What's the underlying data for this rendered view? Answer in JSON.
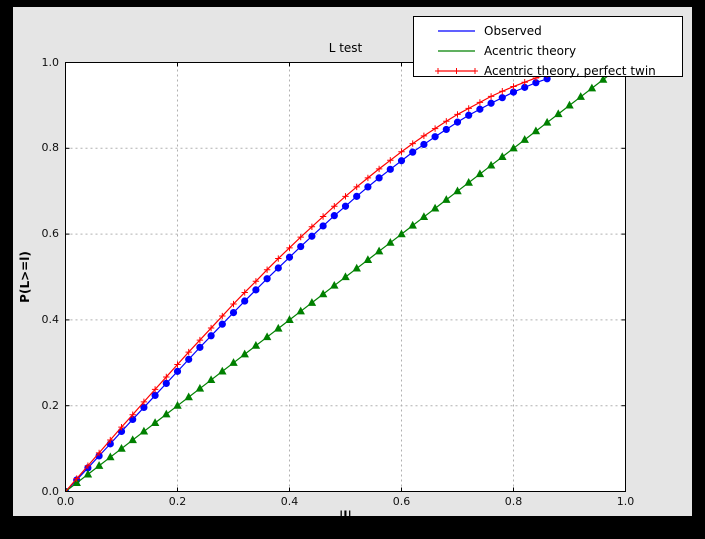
{
  "window": {
    "background": "#000000",
    "figure_background": "#e5e5e5",
    "plot_background": "#ffffff",
    "grid_color": "#b0b0b0",
    "spine_color": "#000000"
  },
  "chart_data": {
    "type": "line",
    "title": "L test",
    "xlabel": "|l|",
    "ylabel": "P(L>=l)",
    "xlim": [
      0.0,
      1.0
    ],
    "ylim": [
      0.0,
      1.0
    ],
    "xticks": [
      "0.0",
      "0.2",
      "0.4",
      "0.6",
      "0.8",
      "1.0"
    ],
    "yticks": [
      "0.0",
      "0.2",
      "0.4",
      "0.6",
      "0.8",
      "1.0"
    ],
    "grid": true,
    "legend": {
      "position": "upper right"
    },
    "series": [
      {
        "name": "Observed",
        "color": "#0000ff",
        "marker": "circle",
        "x": [
          0.0,
          0.02,
          0.04,
          0.06,
          0.08,
          0.1,
          0.12,
          0.14,
          0.16,
          0.18,
          0.2,
          0.22,
          0.24,
          0.26,
          0.28,
          0.3,
          0.32,
          0.34,
          0.36,
          0.38,
          0.4,
          0.42,
          0.44,
          0.46,
          0.48,
          0.5,
          0.52,
          0.54,
          0.56,
          0.58,
          0.6,
          0.62,
          0.64,
          0.66,
          0.68,
          0.7,
          0.72,
          0.74,
          0.76,
          0.78,
          0.8,
          0.82,
          0.84,
          0.86
        ],
        "y": [
          0.0,
          0.027,
          0.055,
          0.083,
          0.111,
          0.14,
          0.168,
          0.196,
          0.224,
          0.252,
          0.28,
          0.308,
          0.336,
          0.363,
          0.39,
          0.417,
          0.444,
          0.47,
          0.496,
          0.521,
          0.546,
          0.571,
          0.595,
          0.619,
          0.643,
          0.665,
          0.688,
          0.71,
          0.731,
          0.751,
          0.771,
          0.791,
          0.809,
          0.827,
          0.844,
          0.861,
          0.877,
          0.891,
          0.905,
          0.918,
          0.931,
          0.942,
          0.953,
          0.962
        ]
      },
      {
        "name": "Acentric theory",
        "color": "#008000",
        "marker": "triangle",
        "x": [
          0.0,
          0.02,
          0.04,
          0.06,
          0.08,
          0.1,
          0.12,
          0.14,
          0.16,
          0.18,
          0.2,
          0.22,
          0.24,
          0.26,
          0.28,
          0.3,
          0.32,
          0.34,
          0.36,
          0.38,
          0.4,
          0.42,
          0.44,
          0.46,
          0.48,
          0.5,
          0.52,
          0.54,
          0.56,
          0.58,
          0.6,
          0.62,
          0.64,
          0.66,
          0.68,
          0.7,
          0.72,
          0.74,
          0.76,
          0.78,
          0.8,
          0.82,
          0.84,
          0.86,
          0.88,
          0.9,
          0.92,
          0.94,
          0.96,
          0.98,
          1.0
        ],
        "y": [
          0.0,
          0.02,
          0.04,
          0.06,
          0.08,
          0.1,
          0.12,
          0.14,
          0.16,
          0.18,
          0.2,
          0.22,
          0.24,
          0.26,
          0.28,
          0.3,
          0.32,
          0.34,
          0.36,
          0.38,
          0.4,
          0.42,
          0.44,
          0.46,
          0.48,
          0.5,
          0.52,
          0.54,
          0.56,
          0.58,
          0.6,
          0.62,
          0.64,
          0.66,
          0.68,
          0.7,
          0.72,
          0.74,
          0.76,
          0.78,
          0.8,
          0.82,
          0.84,
          0.86,
          0.88,
          0.9,
          0.92,
          0.94,
          0.96,
          0.98,
          1.0
        ]
      },
      {
        "name": "Acentric theory, perfect twin",
        "color": "#ff0000",
        "marker": "plus",
        "x": [
          0.0,
          0.02,
          0.04,
          0.06,
          0.08,
          0.1,
          0.12,
          0.14,
          0.16,
          0.18,
          0.2,
          0.22,
          0.24,
          0.26,
          0.28,
          0.3,
          0.32,
          0.34,
          0.36,
          0.38,
          0.4,
          0.42,
          0.44,
          0.46,
          0.48,
          0.5,
          0.52,
          0.54,
          0.56,
          0.58,
          0.6,
          0.62,
          0.64,
          0.66,
          0.68,
          0.7,
          0.72,
          0.74,
          0.76,
          0.78,
          0.8,
          0.82,
          0.84,
          0.86,
          0.88,
          0.9,
          0.92,
          0.94,
          0.96,
          0.98,
          1.0
        ],
        "y": [
          0.0,
          0.03,
          0.06,
          0.09,
          0.12,
          0.15,
          0.179,
          0.209,
          0.238,
          0.267,
          0.296,
          0.325,
          0.353,
          0.381,
          0.409,
          0.437,
          0.464,
          0.49,
          0.517,
          0.543,
          0.568,
          0.593,
          0.617,
          0.641,
          0.665,
          0.688,
          0.71,
          0.731,
          0.752,
          0.772,
          0.792,
          0.811,
          0.829,
          0.846,
          0.863,
          0.879,
          0.893,
          0.907,
          0.921,
          0.933,
          0.944,
          0.954,
          0.964,
          0.972,
          0.979,
          0.986,
          0.991,
          0.995,
          0.998,
          0.999,
          1.0
        ]
      }
    ]
  }
}
